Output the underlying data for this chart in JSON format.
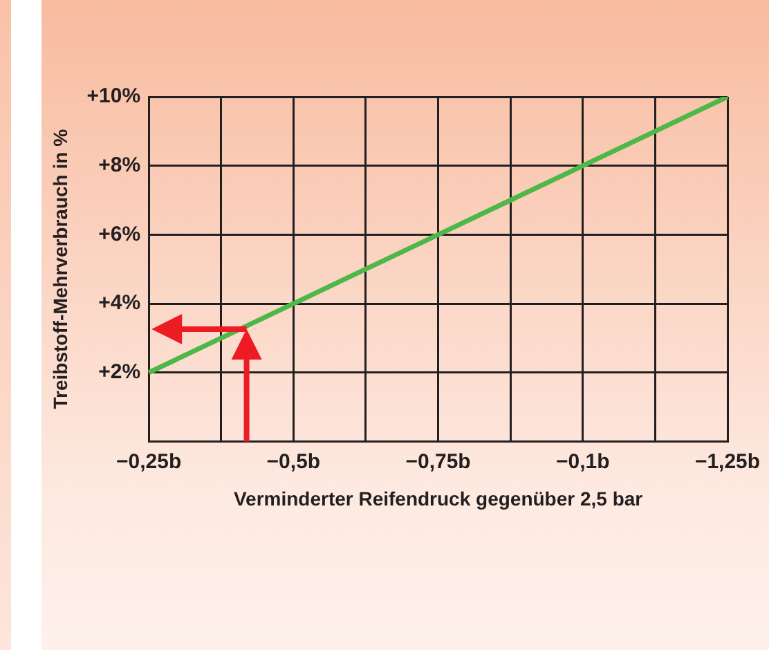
{
  "chart_data": {
    "type": "line",
    "xlabel": "Verminderter Reifendruck gegenüber 2,5 bar",
    "ylabel": "Treibstoff-Mehrverbrauch in %",
    "categories": [
      "−0,25b",
      null,
      "−0,5b",
      null,
      "−0,75b",
      null,
      "−0,1b",
      null,
      "−1,25b"
    ],
    "series": [
      {
        "color": "#4db848",
        "values": [
          2,
          3,
          4,
          5,
          6,
          7,
          8,
          9,
          10
        ]
      }
    ],
    "ylim": [
      0,
      10
    ],
    "yticks": [
      {
        "value": 0,
        "label": null
      },
      {
        "value": 2,
        "label": "+2%"
      },
      {
        "value": 4,
        "label": "+4%"
      },
      {
        "value": 6,
        "label": "+6%"
      },
      {
        "value": 8,
        "label": "+8%"
      },
      {
        "value": 10,
        "label": "+10%"
      }
    ],
    "grid": true,
    "legend": false,
    "marker": "none",
    "line_style": "solid"
  }
}
